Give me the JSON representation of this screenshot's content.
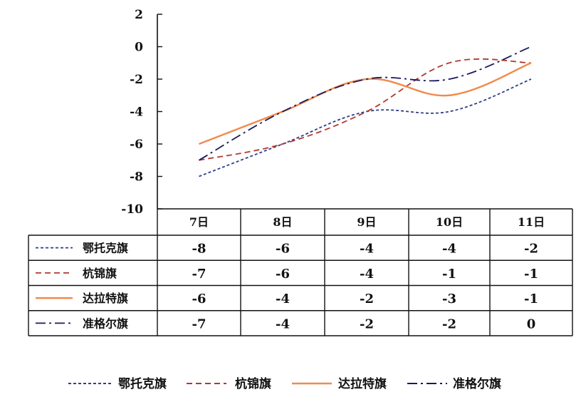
{
  "chart_data": {
    "type": "line",
    "categories": [
      "7日",
      "8日",
      "9日",
      "10日",
      "11日"
    ],
    "ylim": [
      -10,
      2
    ],
    "yticks": [
      2,
      0,
      -2,
      -4,
      -6,
      -8,
      -10
    ],
    "series": [
      {
        "name": "鄂托克旗",
        "values": [
          -8,
          -6,
          -4,
          -4,
          -2
        ],
        "color": "#2f3f8a",
        "dash": "short"
      },
      {
        "name": "杭锦旗",
        "values": [
          -7,
          -6,
          -4,
          -1,
          -1
        ],
        "color": "#b03a2e",
        "dash": "long"
      },
      {
        "name": "达拉特旗",
        "values": [
          -6,
          -4,
          -2,
          -3,
          -1
        ],
        "color": "#f08a4b",
        "dash": "solid"
      },
      {
        "name": "准格尔旗",
        "values": [
          -7,
          -4,
          -2,
          -2,
          0
        ],
        "color": "#1a1a5e",
        "dash": "dashdot"
      }
    ],
    "table": {
      "rows": [
        {
          "label": "鄂托克旗",
          "cells": [
            "-8",
            "-6",
            "-4",
            "-4",
            "-2"
          ]
        },
        {
          "label": "杭锦旗",
          "cells": [
            "-7",
            "-6",
            "-4",
            "-1",
            "-1"
          ]
        },
        {
          "label": "达拉特旗",
          "cells": [
            "-6",
            "-4",
            "-2",
            "-3",
            "-1"
          ]
        },
        {
          "label": "准格尔旗",
          "cells": [
            "-7",
            "-4",
            "-2",
            "-2",
            "0"
          ]
        }
      ]
    },
    "legend": {
      "position": "bottom",
      "items": [
        "鄂托克旗",
        "杭锦旗",
        "达拉特旗",
        "准格尔旗"
      ]
    }
  }
}
